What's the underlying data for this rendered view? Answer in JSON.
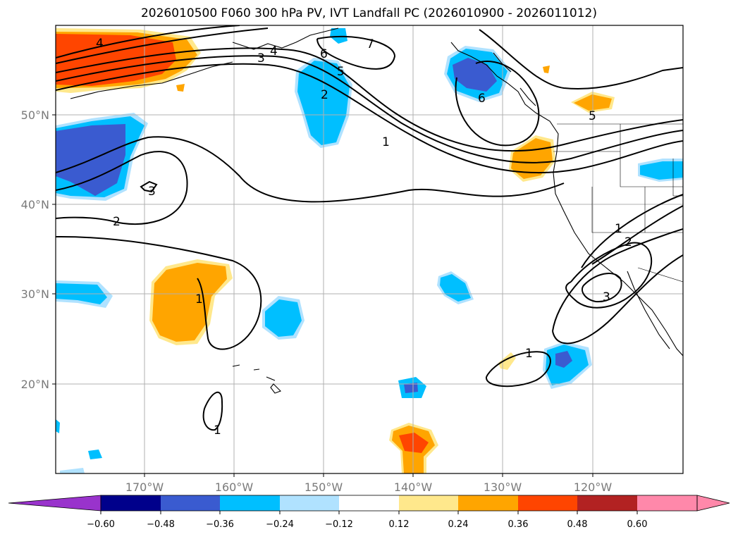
{
  "title": "2026010500 F060 300 hPa PV, IVT Landfall PC (2026010900 - 2026011012)",
  "colors": {
    "blue_dark": "#3a5bd0",
    "blue_mid": "#00bfff",
    "blue_light": "#b0e2ff",
    "orange_light": "#ffe88c",
    "orange": "#ffa500",
    "orange_red": "#ff4500",
    "coast": "#000000",
    "grid": "#b0b0b0"
  },
  "map": {
    "lat_labels": [
      "50°N",
      "40°N",
      "30°N",
      "20°N"
    ],
    "lon_labels": [
      "170°W",
      "160°W",
      "150°W",
      "140°W",
      "130°W",
      "120°W"
    ],
    "contour_labels": [
      "4",
      "3",
      "4",
      "6",
      "7",
      "5",
      "2",
      "1",
      "6",
      "5",
      "3",
      "2",
      "1",
      "1",
      "2",
      "3",
      "1",
      "1"
    ]
  },
  "colorbar": {
    "tick_labels": [
      "−0.60",
      "−0.48",
      "−0.36",
      "−0.24",
      "−0.12",
      "0.12",
      "0.24",
      "0.36",
      "0.48",
      "0.60"
    ],
    "colors": [
      "#9933cc",
      "#00008b",
      "#3a5bd0",
      "#00bfff",
      "#b0e2ff",
      "#ffffff",
      "#ffe88c",
      "#ffa500",
      "#ff4500",
      "#b22222",
      "#ff88aa",
      "#ff88aa"
    ]
  }
}
